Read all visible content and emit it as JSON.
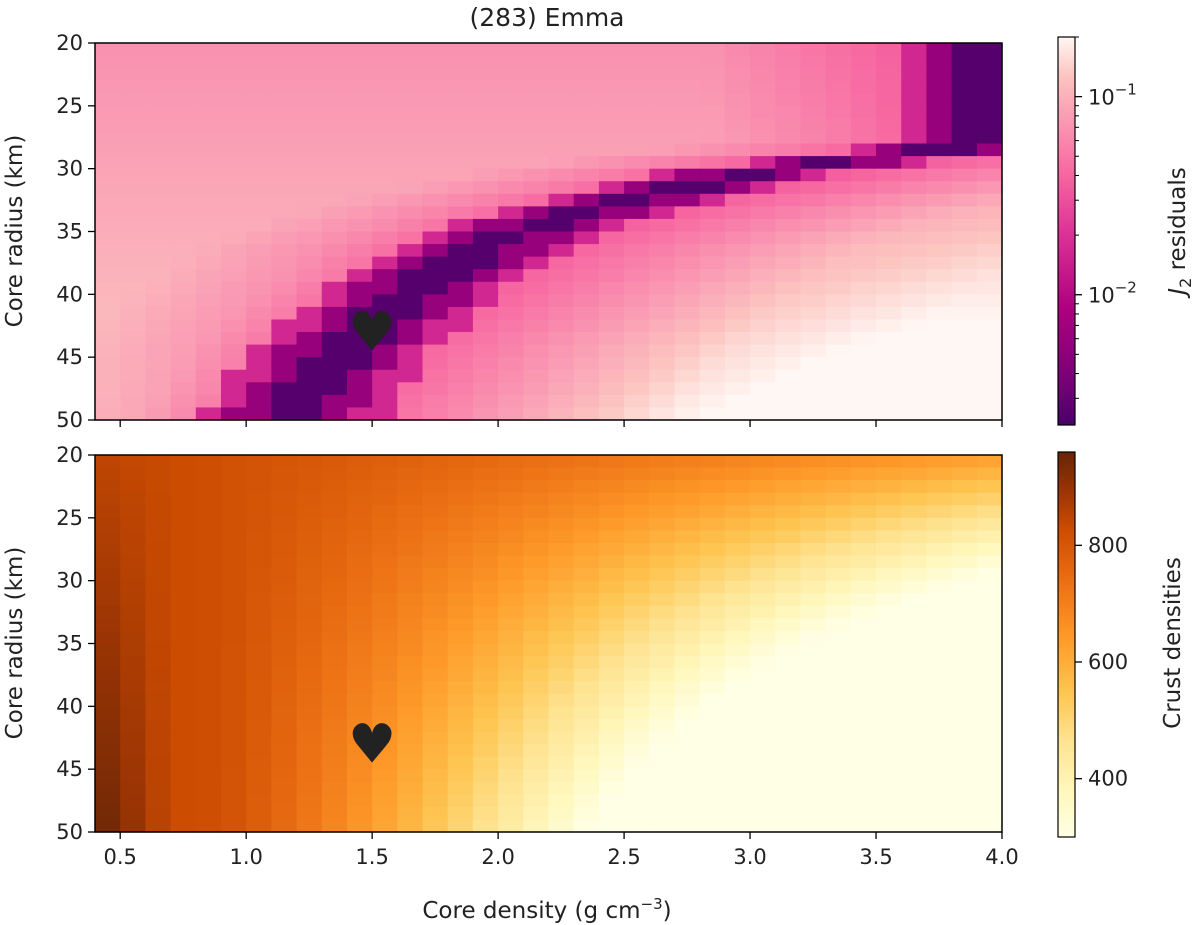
{
  "chart_data": [
    {
      "type": "heatmap",
      "title": "(283) Emma",
      "xlabel": "",
      "ylabel": "Core radius (km)",
      "xlim": [
        0.4,
        4.0
      ],
      "ylim": [
        50,
        20
      ],
      "x_ticks": [
        0.5,
        1.0,
        1.5,
        2.0,
        2.5,
        3.0,
        3.5,
        4.0
      ],
      "y_ticks": [
        "20",
        "25",
        "30",
        "35",
        "40",
        "45",
        "50"
      ],
      "grid": {
        "x_cells": 36,
        "y_cells": 30
      },
      "minimum_valley": [
        {
          "core_radius": 28,
          "core_density": 3.95
        },
        {
          "core_radius": 30,
          "core_density": 3.1
        },
        {
          "core_radius": 33,
          "core_density": 2.4
        },
        {
          "core_radius": 36,
          "core_density": 1.95
        },
        {
          "core_radius": 40,
          "core_density": 1.65
        },
        {
          "core_radius": 44,
          "core_density": 1.4
        },
        {
          "core_radius": 48,
          "core_density": 1.25
        },
        {
          "core_radius": 50,
          "core_density": 1.17
        }
      ],
      "colorbar": {
        "label_main": "J",
        "label_sub": "2",
        "label_rest": " residuals",
        "scale": "log",
        "range": [
          0.0022,
          0.2
        ],
        "ticks": [
          {
            "value": 0.1,
            "base": "10",
            "exp": "−1"
          },
          {
            "value": 0.01,
            "base": "10",
            "exp": "−2"
          }
        ],
        "colormap": "RdPu_r"
      },
      "marker": {
        "symbol": "♥",
        "core_density": 1.5,
        "core_radius": 43,
        "color": "#ffffff"
      }
    },
    {
      "type": "heatmap",
      "xlabel_prefix": "Core density (g cm",
      "xlabel_exp": "−3",
      "xlabel_suffix": ")",
      "ylabel": "Core radius (km)",
      "xlim": [
        0.4,
        4.0
      ],
      "ylim": [
        50,
        20
      ],
      "x_ticks": [
        "0.5",
        "1.0",
        "1.5",
        "2.0",
        "2.5",
        "3.0",
        "3.5",
        "4.0"
      ],
      "y_ticks": [
        "20",
        "25",
        "30",
        "35",
        "40",
        "45",
        "50"
      ],
      "grid": {
        "x_cells": 36,
        "y_cells": 30
      },
      "colorbar": {
        "label": "Crust densities",
        "scale": "linear",
        "range": [
          300,
          960
        ],
        "ticks": [
          {
            "value": 800,
            "label": "800"
          },
          {
            "value": 600,
            "label": "600"
          },
          {
            "value": 400,
            "label": "400"
          }
        ],
        "colormap": "YlOrBr"
      },
      "marker": {
        "symbol": "♥",
        "core_density": 1.5,
        "core_radius": 43,
        "color": "#000000"
      }
    }
  ]
}
